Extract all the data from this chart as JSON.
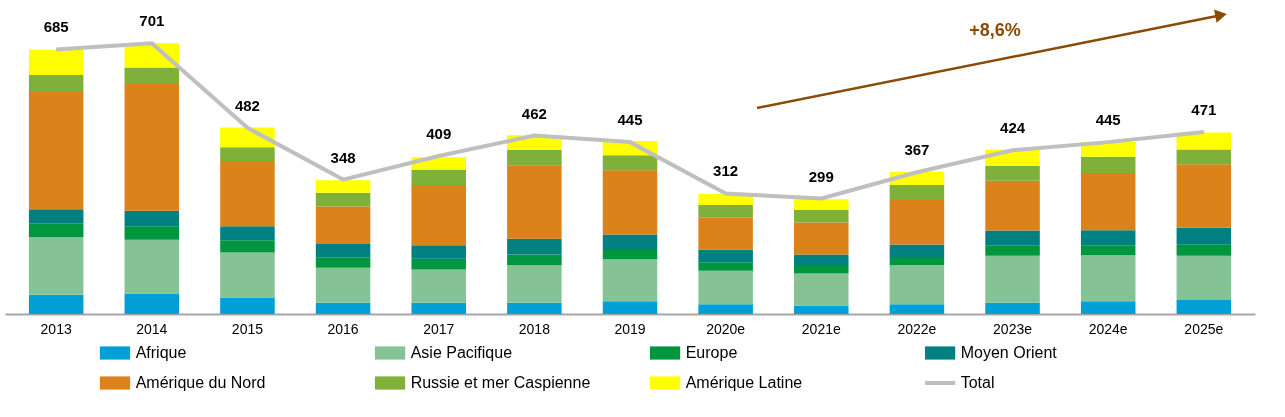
{
  "chart_data": {
    "type": "bar",
    "stacked": true,
    "legend": "bottom",
    "tick_labels": "x",
    "categories": [
      "2013",
      "2014",
      "2015",
      "2016",
      "2017",
      "2018",
      "2019",
      "2020e",
      "2021e",
      "2022e",
      "2023e",
      "2024e",
      "2025e"
    ],
    "series": [
      {
        "name": "Afrique",
        "color": "#00a0d6",
        "values": [
          50,
          53,
          43,
          29,
          29,
          29,
          33,
          25,
          22,
          25,
          29,
          33,
          36
        ]
      },
      {
        "name": "Asie Pacifique",
        "color": "#86c394",
        "values": [
          149,
          139,
          116,
          91,
          86,
          97,
          109,
          87,
          83,
          102,
          122,
          119,
          115
        ]
      },
      {
        "name": "Europe",
        "color": "#00963f",
        "values": [
          36,
          35,
          32,
          27,
          28,
          28,
          24,
          22,
          19,
          18,
          26,
          26,
          28
        ]
      },
      {
        "name": "Moyen Orient",
        "color": "#008080",
        "values": [
          36,
          40,
          36,
          34,
          35,
          41,
          40,
          33,
          30,
          35,
          39,
          39,
          44
        ]
      },
      {
        "name": "Amérique du Nord",
        "color": "#db821b",
        "values": [
          304,
          331,
          169,
          97,
          156,
          190,
          166,
          82,
          83,
          115,
          129,
          148,
          165
        ]
      },
      {
        "name": "Russie et mer Caspienne",
        "color": "#7eb03a",
        "values": [
          44,
          40,
          36,
          36,
          39,
          40,
          39,
          33,
          33,
          39,
          39,
          42,
          38
        ]
      },
      {
        "name": "Amérique Latine",
        "color": "#ffff00",
        "values": [
          65,
          63,
          51,
          32,
          33,
          38,
          37,
          29,
          27,
          34,
          41,
          38,
          44
        ]
      },
      {
        "name": "Total",
        "type": "line",
        "color": "#bfbfbf",
        "values": [
          685,
          701,
          482,
          348,
          409,
          462,
          445,
          312,
          299,
          367,
          424,
          445,
          471
        ],
        "value_labels": [
          "685",
          "701",
          "482",
          "348",
          "409",
          "462",
          "445",
          "312",
          "299",
          "367",
          "424",
          "445",
          "471"
        ]
      }
    ],
    "annotations": [
      "+8,6%"
    ]
  }
}
